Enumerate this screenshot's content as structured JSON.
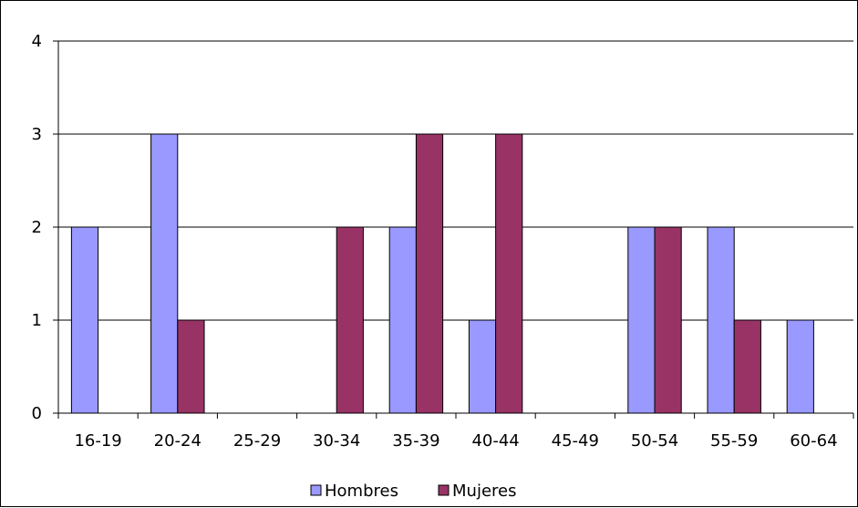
{
  "chart_data": {
    "type": "bar",
    "title": "",
    "xlabel": "",
    "ylabel": "",
    "categories": [
      "16-19",
      "20-24",
      "25-29",
      "30-34",
      "35-39",
      "40-44",
      "45-49",
      "50-54",
      "55-59",
      "60-64"
    ],
    "series": [
      {
        "name": "Hombres",
        "color": "#9999FF",
        "values": [
          2,
          3,
          0,
          0,
          2,
          1,
          0,
          2,
          2,
          1
        ]
      },
      {
        "name": "Mujeres",
        "color": "#993366",
        "values": [
          0,
          1,
          0,
          2,
          3,
          3,
          0,
          2,
          1,
          0
        ]
      }
    ],
    "ylim": [
      0,
      4
    ],
    "yticks": [
      0,
      1,
      2,
      3,
      4
    ],
    "grid": true,
    "legend": "bottom"
  }
}
